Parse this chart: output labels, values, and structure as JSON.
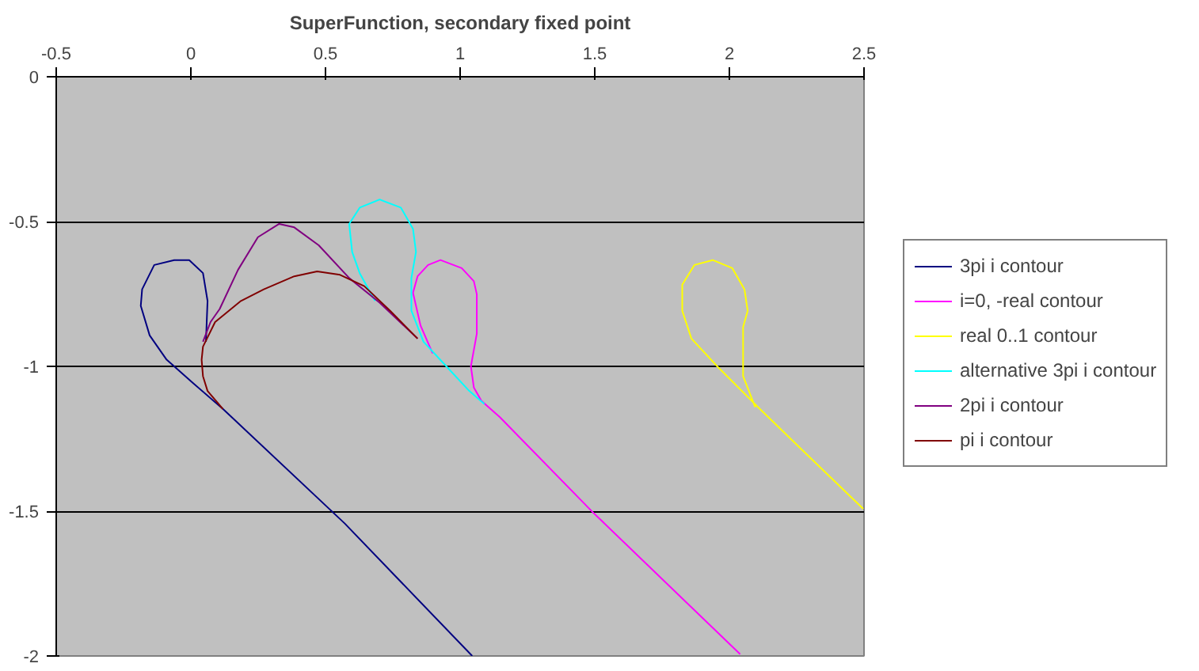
{
  "chart_data": {
    "type": "line",
    "title": "SuperFunction, secondary fixed point",
    "xlim": [
      -0.5,
      2.5
    ],
    "xticks": [
      -0.5,
      0,
      0.5,
      1,
      1.5,
      2,
      2.5
    ],
    "ylim": [
      -2,
      0
    ],
    "yticks": [
      -2,
      -1.5,
      -1,
      -0.5,
      0
    ],
    "grid": "y",
    "legend": "right",
    "marker": "none",
    "line_style": "solid",
    "series": [
      {
        "name": "3pi i contour",
        "color": "#000080",
        "x": [
          0.056,
          0.062,
          0.045,
          -0.006,
          -0.062,
          -0.136,
          -0.181,
          -0.186,
          -0.153,
          -0.09,
          0.006,
          0.119,
          0.571,
          1.045
        ],
        "values": [
          -0.915,
          -0.774,
          -0.678,
          -0.633,
          -0.633,
          -0.65,
          -0.734,
          -0.791,
          -0.893,
          -0.977,
          -1.056,
          -1.147,
          -1.542,
          -2.0
        ]
      },
      {
        "name": "i=0, -real contour",
        "color": "#ff00ff",
        "x": [
          0.898,
          0.853,
          0.825,
          0.842,
          0.881,
          0.927,
          1.006,
          1.051,
          1.062,
          1.062,
          1.04,
          1.051,
          1.079,
          1.147,
          1.492,
          2.04
        ],
        "values": [
          -0.955,
          -0.859,
          -0.746,
          -0.689,
          -0.65,
          -0.633,
          -0.661,
          -0.706,
          -0.751,
          -0.887,
          -1.0,
          -1.073,
          -1.119,
          -1.175,
          -1.503,
          -1.994
        ]
      },
      {
        "name": "real 0..1 contour",
        "color": "#ffff00",
        "x": [
          2.096,
          2.051,
          2.051,
          2.068,
          2.056,
          2.011,
          1.938,
          1.87,
          1.825,
          1.825,
          1.859,
          1.955,
          2.113,
          2.282,
          2.497
        ],
        "values": [
          -1.141,
          -1.034,
          -0.864,
          -0.808,
          -0.734,
          -0.661,
          -0.633,
          -0.65,
          -0.718,
          -0.808,
          -0.904,
          -1.0,
          -1.147,
          -1.299,
          -1.492
        ]
      },
      {
        "name": "alternative 3pi i contour",
        "color": "#00ffff",
        "x": [
          0.684,
          0.627,
          0.599,
          0.588,
          0.627,
          0.701,
          0.78,
          0.825,
          0.836,
          0.819,
          0.819,
          0.864,
          0.949,
          1.034,
          1.09
        ],
        "values": [
          -0.774,
          -0.678,
          -0.605,
          -0.508,
          -0.452,
          -0.424,
          -0.452,
          -0.525,
          -0.605,
          -0.695,
          -0.808,
          -0.915,
          -1.0,
          -1.085,
          -1.13
        ]
      },
      {
        "name": "2pi i contour",
        "color": "#800080",
        "x": [
          0.045,
          0.073,
          0.107,
          0.175,
          0.249,
          0.328,
          0.384,
          0.475,
          0.588,
          0.701,
          0.842
        ],
        "values": [
          -0.915,
          -0.847,
          -0.802,
          -0.667,
          -0.554,
          -0.508,
          -0.52,
          -0.582,
          -0.695,
          -0.78,
          -0.904
        ]
      },
      {
        "name": "pi i contour",
        "color": "#800000",
        "x": [
          0.119,
          0.062,
          0.045,
          0.04,
          0.045,
          0.09,
          0.186,
          0.271,
          0.384,
          0.469,
          0.554,
          0.644,
          0.74,
          0.842
        ],
        "values": [
          -1.147,
          -1.085,
          -1.034,
          -0.977,
          -0.932,
          -0.847,
          -0.774,
          -0.734,
          -0.689,
          -0.672,
          -0.684,
          -0.723,
          -0.808,
          -0.904
        ]
      }
    ]
  }
}
